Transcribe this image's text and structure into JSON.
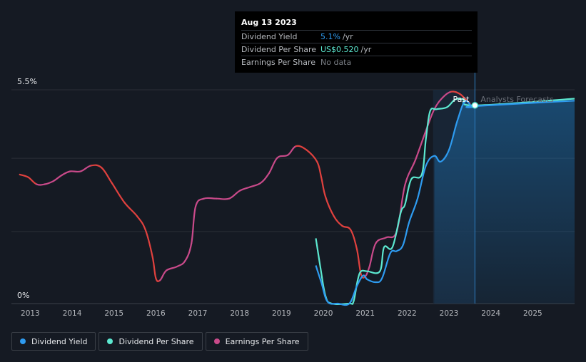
{
  "tooltip": {
    "date": "Aug 13 2023",
    "rows": [
      {
        "label": "Dividend Yield",
        "value": "5.1%",
        "unit": "/yr",
        "color": "#2e9bf0"
      },
      {
        "label": "Dividend Per Share",
        "value": "US$0.520",
        "unit": "/yr",
        "color": "#5ce8d0"
      },
      {
        "label": "Earnings Per Share",
        "value": "No data",
        "unit": "",
        "color": "#7a7e85"
      }
    ]
  },
  "legend": [
    {
      "label": "Dividend Yield",
      "color": "#2e9bf0"
    },
    {
      "label": "Dividend Per Share",
      "color": "#5ce8d0"
    },
    {
      "label": "Earnings Per Share",
      "color": "#c94a8a"
    }
  ],
  "chart_data": {
    "type": "line",
    "y_label_top": "5.5%",
    "y_label_bottom": "0%",
    "ylim": [
      0,
      5.5
    ],
    "xlim": [
      2012.55,
      2026.0
    ],
    "x_ticks": [
      "2013",
      "2014",
      "2015",
      "2016",
      "2017",
      "2018",
      "2019",
      "2020",
      "2021",
      "2022",
      "2023",
      "2024",
      "2025"
    ],
    "past_label": "Past",
    "forecast_label": "Analysts Forecasts",
    "forecast_start": 2023.62,
    "highlight_start": 2022.62,
    "colors": {
      "earnings_drop": "#e0413e",
      "earnings_rise": "#c94a8a",
      "yield": "#2e9bf0",
      "dps": "#5ce8d0"
    },
    "series": [
      {
        "name": "Earnings Per Share",
        "points": [
          [
            2012.75,
            3.32
          ],
          [
            2012.95,
            3.25
          ],
          [
            2013.15,
            3.07
          ],
          [
            2013.35,
            3.07
          ],
          [
            2013.55,
            3.15
          ],
          [
            2013.75,
            3.3
          ],
          [
            2013.95,
            3.4
          ],
          [
            2014.2,
            3.4
          ],
          [
            2014.45,
            3.55
          ],
          [
            2014.7,
            3.5
          ],
          [
            2014.95,
            3.1
          ],
          [
            2015.25,
            2.6
          ],
          [
            2015.55,
            2.25
          ],
          [
            2015.75,
            1.9
          ],
          [
            2015.92,
            1.2
          ],
          [
            2016.0,
            0.65
          ],
          [
            2016.1,
            0.6
          ],
          [
            2016.25,
            0.85
          ],
          [
            2016.5,
            0.95
          ],
          [
            2016.7,
            1.1
          ],
          [
            2016.85,
            1.55
          ],
          [
            2016.95,
            2.5
          ],
          [
            2017.15,
            2.7
          ],
          [
            2017.45,
            2.7
          ],
          [
            2017.75,
            2.7
          ],
          [
            2018.0,
            2.9
          ],
          [
            2018.25,
            3.0
          ],
          [
            2018.5,
            3.1
          ],
          [
            2018.7,
            3.35
          ],
          [
            2018.9,
            3.75
          ],
          [
            2019.15,
            3.82
          ],
          [
            2019.35,
            4.05
          ],
          [
            2019.6,
            3.95
          ],
          [
            2019.85,
            3.65
          ],
          [
            2019.95,
            3.25
          ],
          [
            2020.05,
            2.75
          ],
          [
            2020.25,
            2.25
          ],
          [
            2020.45,
            2.0
          ],
          [
            2020.65,
            1.9
          ],
          [
            2020.8,
            1.4
          ],
          [
            2020.9,
            0.75
          ],
          [
            2021.0,
            0.7
          ],
          [
            2021.1,
            0.95
          ],
          [
            2021.25,
            1.55
          ],
          [
            2021.5,
            1.7
          ],
          [
            2021.75,
            1.85
          ],
          [
            2021.95,
            3.05
          ],
          [
            2022.2,
            3.7
          ],
          [
            2022.45,
            4.45
          ],
          [
            2022.65,
            5.0
          ],
          [
            2022.85,
            5.3
          ],
          [
            2023.05,
            5.45
          ],
          [
            2023.25,
            5.4
          ],
          [
            2023.4,
            5.25
          ],
          [
            2023.5,
            5.15
          ]
        ]
      },
      {
        "name": "Dividend Yield",
        "points": [
          [
            2019.82,
            0.98
          ],
          [
            2019.95,
            0.55
          ],
          [
            2020.1,
            0.05
          ],
          [
            2020.35,
            0.0
          ],
          [
            2020.62,
            0.0
          ],
          [
            2020.8,
            0.45
          ],
          [
            2020.95,
            0.72
          ],
          [
            2021.05,
            0.62
          ],
          [
            2021.25,
            0.55
          ],
          [
            2021.4,
            0.65
          ],
          [
            2021.6,
            1.3
          ],
          [
            2021.75,
            1.35
          ],
          [
            2021.9,
            1.5
          ],
          [
            2022.05,
            2.1
          ],
          [
            2022.25,
            2.7
          ],
          [
            2022.45,
            3.55
          ],
          [
            2022.65,
            3.8
          ],
          [
            2022.8,
            3.65
          ],
          [
            2023.0,
            3.95
          ],
          [
            2023.2,
            4.7
          ],
          [
            2023.38,
            5.2
          ],
          [
            2023.55,
            5.06
          ],
          [
            2023.62,
            5.08
          ],
          [
            2026.0,
            5.22
          ]
        ]
      },
      {
        "name": "Dividend Per Share",
        "points": [
          [
            2019.82,
            1.68
          ],
          [
            2019.92,
            1.0
          ],
          [
            2020.05,
            0.2
          ],
          [
            2020.2,
            0.0
          ],
          [
            2020.62,
            0.0
          ],
          [
            2020.72,
            0.05
          ],
          [
            2020.82,
            0.6
          ],
          [
            2020.9,
            0.83
          ],
          [
            2021.05,
            0.83
          ],
          [
            2021.35,
            0.83
          ],
          [
            2021.45,
            1.45
          ],
          [
            2021.65,
            1.45
          ],
          [
            2021.85,
            2.35
          ],
          [
            2021.95,
            2.55
          ],
          [
            2022.1,
            3.2
          ],
          [
            2022.35,
            3.32
          ],
          [
            2022.45,
            4.25
          ],
          [
            2022.55,
            4.95
          ],
          [
            2022.7,
            5.0
          ],
          [
            2022.95,
            5.05
          ],
          [
            2023.15,
            5.25
          ],
          [
            2023.35,
            5.25
          ],
          [
            2023.62,
            5.1
          ],
          [
            2026.0,
            5.27
          ]
        ]
      }
    ]
  }
}
